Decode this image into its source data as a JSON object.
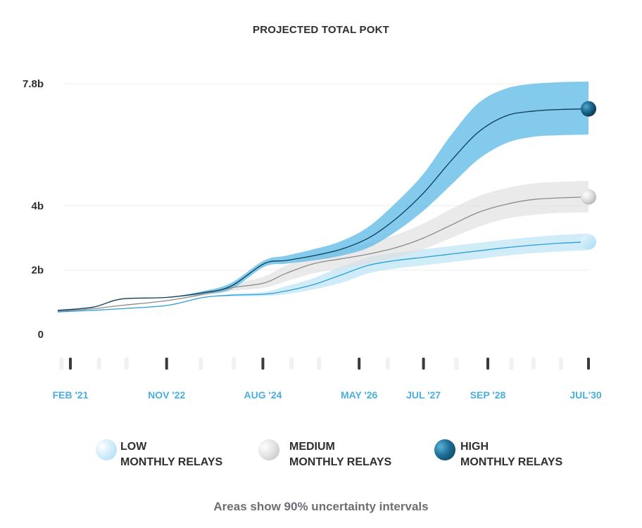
{
  "chart_data": {
    "type": "area",
    "title": "PROJECTED TOTAL POKT",
    "footnote": "Areas show 90% uncertainty intervals",
    "xlabel": "",
    "ylabel": "",
    "ylim": [
      0,
      7.8
    ],
    "xlim": [
      2020.85,
      2030.5
    ],
    "grid": true,
    "y_ticks": [
      {
        "value": 0,
        "label": "0"
      },
      {
        "value": 2,
        "label": "2b"
      },
      {
        "value": 4,
        "label": "4b"
      },
      {
        "value": 7.8,
        "label": "7.8b"
      }
    ],
    "x_ticks": [
      {
        "value": 2021.08,
        "label": "FEB '21"
      },
      {
        "value": 2022.83,
        "label": "NOV '22"
      },
      {
        "value": 2024.58,
        "label": "AUG '24"
      },
      {
        "value": 2026.33,
        "label": "MAY '26"
      },
      {
        "value": 2027.5,
        "label": "JUL '27"
      },
      {
        "value": 2028.67,
        "label": "SEP '28"
      },
      {
        "value": 2030.5,
        "label": "JUL'30"
      }
    ],
    "minor_x_ticks": [
      2020.92,
      2021.6,
      2022.1,
      2023.45,
      2024.05,
      2025.1,
      2025.6,
      2026.85,
      2028.1,
      2029.1,
      2029.5,
      2030.0
    ],
    "series": [
      {
        "name": "LOW MONTHLY RELAYS",
        "color": "#2a9fd6",
        "band_color": "#a9dcf4",
        "x": [
          2020.85,
          2021.5,
          2022.0,
          2022.83,
          2023.5,
          2024.0,
          2024.6,
          2025.0,
          2025.5,
          2026.0,
          2026.5,
          2027.0,
          2027.5,
          2028.0,
          2028.5,
          2029.0,
          2029.5,
          2030.0,
          2030.5
        ],
        "values": [
          0.7,
          0.75,
          0.8,
          0.9,
          1.15,
          1.22,
          1.25,
          1.35,
          1.55,
          1.85,
          2.15,
          2.3,
          2.4,
          2.5,
          2.6,
          2.7,
          2.78,
          2.84,
          2.88
        ],
        "lower": [
          0.7,
          0.75,
          0.8,
          0.9,
          1.15,
          1.18,
          1.2,
          1.25,
          1.4,
          1.6,
          1.9,
          2.05,
          2.15,
          2.25,
          2.35,
          2.45,
          2.53,
          2.58,
          2.62
        ],
        "upper": [
          0.7,
          0.75,
          0.8,
          0.9,
          1.15,
          1.26,
          1.32,
          1.5,
          1.75,
          2.1,
          2.4,
          2.55,
          2.65,
          2.75,
          2.85,
          2.95,
          3.03,
          3.1,
          3.14
        ]
      },
      {
        "name": "MEDIUM MONTHLY RELAYS",
        "color": "#8a8a8c",
        "band_color": "#dedede",
        "x": [
          2020.85,
          2021.5,
          2022.0,
          2022.83,
          2023.5,
          2024.0,
          2024.6,
          2025.0,
          2025.5,
          2026.0,
          2026.5,
          2027.0,
          2027.5,
          2028.0,
          2028.5,
          2029.0,
          2029.5,
          2030.0,
          2030.5
        ],
        "values": [
          0.72,
          0.8,
          0.9,
          1.05,
          1.25,
          1.45,
          1.6,
          1.9,
          2.2,
          2.35,
          2.5,
          2.7,
          3.0,
          3.4,
          3.8,
          4.05,
          4.2,
          4.25,
          4.28
        ],
        "lower": [
          0.72,
          0.8,
          0.9,
          1.05,
          1.2,
          1.35,
          1.45,
          1.65,
          1.9,
          2.05,
          2.2,
          2.4,
          2.65,
          3.0,
          3.35,
          3.6,
          3.72,
          3.78,
          3.8
        ],
        "upper": [
          0.72,
          0.8,
          0.9,
          1.05,
          1.3,
          1.55,
          1.8,
          2.15,
          2.45,
          2.65,
          2.85,
          3.1,
          3.45,
          3.9,
          4.3,
          4.55,
          4.7,
          4.75,
          4.78
        ]
      },
      {
        "name": "HIGH MONTHLY RELAYS",
        "color": "#0b3d57",
        "band_color": "#5bb8e6",
        "x": [
          2020.85,
          2021.5,
          2022.0,
          2022.83,
          2023.5,
          2024.0,
          2024.6,
          2025.0,
          2025.5,
          2026.0,
          2026.5,
          2027.0,
          2027.5,
          2028.0,
          2028.5,
          2029.0,
          2029.5,
          2030.0,
          2030.5
        ],
        "values": [
          0.75,
          0.85,
          1.1,
          1.15,
          1.3,
          1.5,
          2.2,
          2.3,
          2.45,
          2.65,
          3.0,
          3.6,
          4.4,
          5.4,
          6.3,
          6.8,
          6.95,
          7.0,
          7.02
        ],
        "lower": [
          0.75,
          0.85,
          1.1,
          1.15,
          1.25,
          1.4,
          2.1,
          2.2,
          2.3,
          2.45,
          2.7,
          3.2,
          3.85,
          4.65,
          5.45,
          5.95,
          6.15,
          6.2,
          6.22
        ],
        "upper": [
          0.75,
          0.85,
          1.1,
          1.15,
          1.35,
          1.6,
          2.3,
          2.45,
          2.65,
          2.9,
          3.35,
          4.1,
          5.0,
          6.2,
          7.2,
          7.65,
          7.8,
          7.85,
          7.87
        ]
      }
    ],
    "legend": [
      {
        "key": "low",
        "line1": "LOW",
        "line2": "MONTHLY RELAYS"
      },
      {
        "key": "medium",
        "line1": "MEDIUM",
        "line2": "MONTHLY RELAYS"
      },
      {
        "key": "high",
        "line1": "HIGH",
        "line2": "MONTHLY RELAYS"
      }
    ]
  }
}
